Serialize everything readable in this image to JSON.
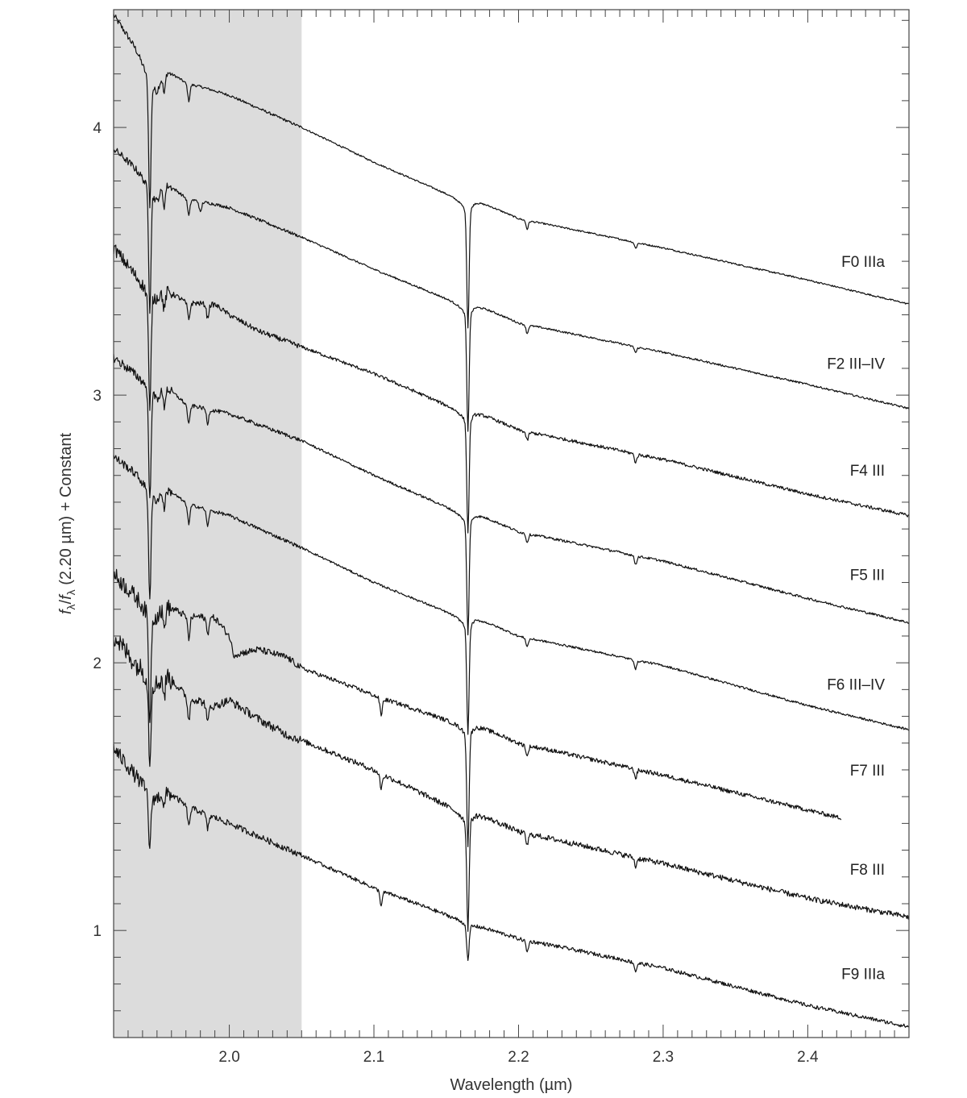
{
  "chart_data": {
    "type": "line",
    "xlabel": "Wavelength (µm)",
    "ylabel": "f_λ/f_λ (2.20 µm) + Constant",
    "ylabel_parts": {
      "f1": "f",
      "sub1": "λ",
      "slash": "/",
      "f2": "f",
      "sub2": "λ",
      "rest": " (2.20 µm) + Constant"
    },
    "xlim": [
      1.92,
      2.47
    ],
    "ylim": [
      0.6,
      4.44
    ],
    "xticks": [
      {
        "value": 2.0,
        "label": "2.0"
      },
      {
        "value": 2.1,
        "label": "2.1"
      },
      {
        "value": 2.2,
        "label": "2.2"
      },
      {
        "value": 2.3,
        "label": "2.3"
      },
      {
        "value": 2.4,
        "label": "2.4"
      }
    ],
    "yticks": [
      {
        "value": 1,
        "label": "1"
      },
      {
        "value": 2,
        "label": "2"
      },
      {
        "value": 3,
        "label": "3"
      },
      {
        "value": 4,
        "label": "4"
      }
    ],
    "shaded_region": {
      "x": [
        1.92,
        2.05
      ],
      "color": "#dcdcdc"
    },
    "grid": false,
    "legend": "none",
    "series": [
      {
        "name": "F0 IIIa",
        "label_y": 3.5,
        "x_end": 2.47,
        "x": [
          1.92,
          1.935,
          1.945,
          1.95,
          1.955,
          1.97,
          2.0,
          2.05,
          2.1,
          2.164,
          2.17,
          2.2,
          2.3,
          2.4,
          2.47
        ],
        "y": [
          4.42,
          4.3,
          4.2,
          4.15,
          4.22,
          4.17,
          4.12,
          4.0,
          3.87,
          3.72,
          3.73,
          3.66,
          3.55,
          3.43,
          3.34
        ],
        "noise": 0.006,
        "bump": 0,
        "lines": [
          {
            "x": 1.945,
            "depth": 0.45
          },
          {
            "x": 1.955,
            "depth": 0.08
          },
          {
            "x": 1.972,
            "depth": 0.06
          },
          {
            "x": 2.165,
            "depth": 0.42
          },
          {
            "x": 2.206,
            "depth": 0.03
          },
          {
            "x": 2.281,
            "depth": 0.02
          }
        ]
      },
      {
        "name": "F2 III–IV",
        "label_y": 3.12,
        "x_end": 2.47,
        "x": [
          1.92,
          1.935,
          1.945,
          1.95,
          1.955,
          1.97,
          2.0,
          2.05,
          2.1,
          2.164,
          2.17,
          2.2,
          2.3,
          2.4,
          2.47
        ],
        "y": [
          3.92,
          3.85,
          3.8,
          3.74,
          3.8,
          3.74,
          3.7,
          3.59,
          3.47,
          3.33,
          3.34,
          3.27,
          3.16,
          3.04,
          2.95
        ],
        "noise": 0.007,
        "bump": 0,
        "lines": [
          {
            "x": 1.945,
            "depth": 0.43
          },
          {
            "x": 1.955,
            "depth": 0.08
          },
          {
            "x": 1.972,
            "depth": 0.06
          },
          {
            "x": 1.98,
            "depth": 0.04
          },
          {
            "x": 2.165,
            "depth": 0.42
          },
          {
            "x": 2.206,
            "depth": 0.03
          },
          {
            "x": 2.281,
            "depth": 0.02
          }
        ]
      },
      {
        "name": "F4 III",
        "label_y": 2.72,
        "x_end": 2.47,
        "x": [
          1.92,
          1.935,
          1.945,
          1.95,
          1.955,
          1.97,
          1.99,
          2.0,
          2.02,
          2.05,
          2.1,
          2.164,
          2.17,
          2.2,
          2.3,
          2.4,
          2.47
        ],
        "y": [
          3.55,
          3.45,
          3.4,
          3.38,
          3.4,
          3.35,
          3.34,
          3.3,
          3.24,
          3.18,
          3.08,
          2.93,
          2.94,
          2.87,
          2.76,
          2.63,
          2.55
        ],
        "noise": 0.012,
        "bump": 0,
        "lines": [
          {
            "x": 1.945,
            "depth": 0.42
          },
          {
            "x": 1.955,
            "depth": 0.07
          },
          {
            "x": 1.972,
            "depth": 0.06
          },
          {
            "x": 1.985,
            "depth": 0.05
          },
          {
            "x": 2.165,
            "depth": 0.4
          },
          {
            "x": 2.206,
            "depth": 0.03
          },
          {
            "x": 2.281,
            "depth": 0.03
          }
        ]
      },
      {
        "name": "F5 III",
        "label_y": 2.33,
        "x_end": 2.47,
        "x": [
          1.92,
          1.935,
          1.945,
          1.95,
          1.955,
          1.97,
          2.0,
          2.05,
          2.1,
          2.164,
          2.17,
          2.2,
          2.3,
          2.4,
          2.47
        ],
        "y": [
          3.14,
          3.08,
          3.05,
          3.0,
          3.04,
          2.97,
          2.93,
          2.83,
          2.7,
          2.55,
          2.56,
          2.49,
          2.38,
          2.24,
          2.15
        ],
        "noise": 0.009,
        "bump": 0,
        "lines": [
          {
            "x": 1.945,
            "depth": 0.4
          },
          {
            "x": 1.955,
            "depth": 0.07
          },
          {
            "x": 1.972,
            "depth": 0.07
          },
          {
            "x": 1.985,
            "depth": 0.05
          },
          {
            "x": 2.165,
            "depth": 0.4
          },
          {
            "x": 2.206,
            "depth": 0.03
          },
          {
            "x": 2.281,
            "depth": 0.03
          }
        ]
      },
      {
        "name": "F6 III–IV",
        "label_y": 1.92,
        "x_end": 2.47,
        "x": [
          1.92,
          1.935,
          1.945,
          1.95,
          1.955,
          1.97,
          2.0,
          2.05,
          2.1,
          2.164,
          2.17,
          2.2,
          2.3,
          2.4,
          2.47
        ],
        "y": [
          2.77,
          2.71,
          2.66,
          2.62,
          2.66,
          2.6,
          2.55,
          2.43,
          2.3,
          2.16,
          2.17,
          2.1,
          1.99,
          1.84,
          1.75
        ],
        "noise": 0.008,
        "bump": 0,
        "lines": [
          {
            "x": 1.945,
            "depth": 0.38
          },
          {
            "x": 1.955,
            "depth": 0.07
          },
          {
            "x": 1.972,
            "depth": 0.07
          },
          {
            "x": 1.985,
            "depth": 0.06
          },
          {
            "x": 2.165,
            "depth": 0.38
          },
          {
            "x": 2.206,
            "depth": 0.03
          },
          {
            "x": 2.281,
            "depth": 0.03
          }
        ]
      },
      {
        "name": "F7 III",
        "label_y": 1.6,
        "x_end": 2.423,
        "x": [
          1.92,
          1.935,
          1.945,
          1.95,
          1.955,
          1.97,
          1.99,
          2.0,
          2.003,
          2.02,
          2.04,
          2.05,
          2.1,
          2.164,
          2.17,
          2.2,
          2.3,
          2.423
        ],
        "y": [
          2.33,
          2.25,
          2.2,
          2.19,
          2.22,
          2.18,
          2.17,
          2.1,
          2.03,
          2.05,
          2.02,
          1.98,
          1.88,
          1.76,
          1.77,
          1.7,
          1.58,
          1.42
        ],
        "noise": 0.016,
        "bump": 0,
        "lines": [
          {
            "x": 1.945,
            "depth": 0.38
          },
          {
            "x": 1.955,
            "depth": 0.08
          },
          {
            "x": 1.972,
            "depth": 0.08
          },
          {
            "x": 1.985,
            "depth": 0.06
          },
          {
            "x": 2.105,
            "depth": 0.06
          },
          {
            "x": 2.165,
            "depth": 0.4
          },
          {
            "x": 2.206,
            "depth": 0.04
          },
          {
            "x": 2.281,
            "depth": 0.03
          }
        ]
      },
      {
        "name": "F8 III",
        "label_y": 1.23,
        "x_end": 2.47,
        "x": [
          1.92,
          1.935,
          1.945,
          1.95,
          1.955,
          1.97,
          1.99,
          2.0,
          2.02,
          2.04,
          2.05,
          2.1,
          2.164,
          2.17,
          2.2,
          2.3,
          2.4,
          2.47
        ],
        "y": [
          2.1,
          2.0,
          1.96,
          1.93,
          1.97,
          1.88,
          1.84,
          1.86,
          1.79,
          1.73,
          1.71,
          1.6,
          1.43,
          1.44,
          1.37,
          1.25,
          1.12,
          1.05
        ],
        "noise": 0.02,
        "bump": 0,
        "lines": [
          {
            "x": 1.945,
            "depth": 0.3
          },
          {
            "x": 1.955,
            "depth": 0.08
          },
          {
            "x": 1.972,
            "depth": 0.08
          },
          {
            "x": 1.985,
            "depth": 0.07
          },
          {
            "x": 2.105,
            "depth": 0.05
          },
          {
            "x": 2.165,
            "depth": 0.38
          },
          {
            "x": 2.206,
            "depth": 0.04
          },
          {
            "x": 2.281,
            "depth": 0.03
          }
        ]
      },
      {
        "name": "F9 IIIa",
        "label_y": 0.84,
        "x_end": 2.47,
        "x": [
          1.92,
          1.935,
          1.945,
          1.95,
          1.955,
          1.97,
          2.0,
          2.05,
          2.1,
          2.164,
          2.17,
          2.2,
          2.3,
          2.4,
          2.47
        ],
        "y": [
          1.68,
          1.58,
          1.52,
          1.5,
          1.53,
          1.47,
          1.4,
          1.28,
          1.16,
          1.03,
          1.02,
          0.97,
          0.86,
          0.72,
          0.64
        ],
        "noise": 0.014,
        "bump": 0,
        "lines": [
          {
            "x": 1.945,
            "depth": 0.2
          },
          {
            "x": 1.955,
            "depth": 0.06
          },
          {
            "x": 1.972,
            "depth": 0.07
          },
          {
            "x": 1.985,
            "depth": 0.05
          },
          {
            "x": 2.105,
            "depth": 0.05
          },
          {
            "x": 2.165,
            "depth": 0.13
          },
          {
            "x": 2.206,
            "depth": 0.04
          },
          {
            "x": 2.281,
            "depth": 0.03
          }
        ]
      }
    ]
  }
}
